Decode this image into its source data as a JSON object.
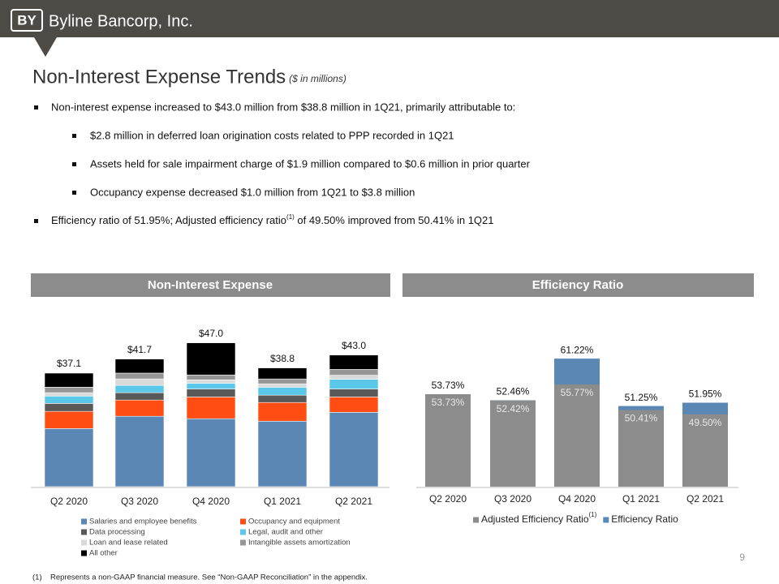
{
  "header": {
    "logo": "BY",
    "company": "Byline Bancorp, Inc."
  },
  "title": "Non-Interest Expense Trends",
  "subtitle": "($ in millions)",
  "bullets": [
    {
      "text": "Non-interest expense increased to $43.0 million from $38.8 million in 1Q21, primarily attributable to:",
      "subs": [
        "$2.8 million in deferred loan origination costs related to PPP recorded in 1Q21",
        "Assets held for sale impairment charge of $1.9 million compared to $0.6 million in prior quarter",
        "Occupancy expense decreased $1.0 million from 1Q21 to $3.8 million"
      ]
    },
    {
      "text": "Efficiency ratio of 51.95%; Adjusted efficiency ratio",
      "sup": "(1)",
      "tail": " of 49.50% improved from 50.41% in 1Q21"
    }
  ],
  "chart_data": [
    {
      "type": "bar",
      "stacked": true,
      "title": "Non-Interest Expense",
      "categories": [
        "Q2 2020",
        "Q3 2020",
        "Q4 2020",
        "Q1 2021",
        "Q2 2021"
      ],
      "total_labels": [
        "$37.1",
        "$41.7",
        "$47.0",
        "$38.8",
        "$43.0"
      ],
      "ylim": [
        0,
        53
      ],
      "series": [
        {
          "name": "Salaries and employee benefits",
          "color": "#5b87b4",
          "values": [
            19.0,
            23.0,
            22.2,
            21.4,
            24.3
          ]
        },
        {
          "name": "Occupancy and equipment",
          "color": "#ff4d14",
          "values": [
            5.6,
            5.3,
            7.1,
            6.1,
            5.0
          ]
        },
        {
          "name": "Data processing",
          "color": "#595959",
          "values": [
            2.6,
            2.4,
            2.6,
            2.4,
            2.6
          ]
        },
        {
          "name": "Legal, audit and other",
          "color": "#5bc8ea",
          "values": [
            2.4,
            2.4,
            1.9,
            2.6,
            3.2
          ]
        },
        {
          "name": "Loan and lease related",
          "color": "#d9d9d9",
          "values": [
            1.1,
            2.1,
            1.1,
            1.1,
            1.3
          ]
        },
        {
          "name": "Intangible assets amortization",
          "color": "#969696",
          "values": [
            1.8,
            1.9,
            1.6,
            1.6,
            1.9
          ]
        },
        {
          "name": "All other",
          "color": "#000000",
          "values": [
            4.6,
            4.6,
            10.5,
            3.6,
            4.7
          ]
        }
      ]
    },
    {
      "type": "bar",
      "overlap": true,
      "title": "Efficiency Ratio",
      "categories": [
        "Q2 2020",
        "Q3 2020",
        "Q4 2020",
        "Q1 2021",
        "Q2 2021"
      ],
      "ylim": [
        34.3,
        68.4
      ],
      "legend_note": "(1)",
      "series": [
        {
          "name": "Adjusted Efficiency Ratio",
          "color": "#8c8c8c",
          "values": [
            53.73,
            52.42,
            55.77,
            50.41,
            49.5
          ],
          "value_labels": [
            "53.73%",
            "52.42%",
            "55.77%",
            "50.41%",
            "49.50%"
          ]
        },
        {
          "name": "Efficiency Ratio",
          "color": "#5b87b4",
          "values": [
            53.73,
            52.46,
            61.22,
            51.25,
            51.95
          ],
          "value_labels": [
            "53.73%",
            "52.46%",
            "61.22%",
            "51.25%",
            "51.95%"
          ]
        }
      ]
    }
  ],
  "footnote": {
    "marker": "(1)",
    "text": "Represents a non-GAAP financial measure.  See “Non-GAAP Reconciliation” in the appendix."
  },
  "page_number": "9"
}
